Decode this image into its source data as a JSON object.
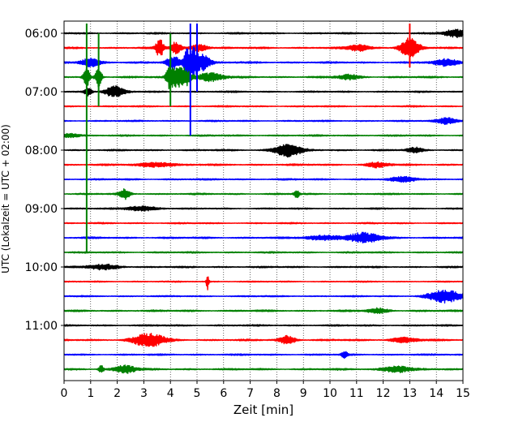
{
  "chart_data": {
    "type": "line",
    "title": "",
    "xlabel": "Zeit  [min]",
    "ylabel": "UTC (Lokalzeit = UTC + 02:00)",
    "xlim": [
      0,
      15
    ],
    "x_ticks": [
      "0",
      "1",
      "2",
      "3",
      "4",
      "5",
      "6",
      "7",
      "8",
      "9",
      "10",
      "11",
      "12",
      "13",
      "14",
      "15"
    ],
    "y_tick_labels": [
      "06:00",
      "07:00",
      "08:00",
      "09:00",
      "10:00",
      "11:00"
    ],
    "trace_interval_min": 15,
    "trace_colors": [
      "#000000",
      "#ff0000",
      "#0000ff",
      "#008000"
    ],
    "grid": {
      "x": "dotted",
      "y": false
    },
    "traces": [
      {
        "start": "06:00",
        "color": "#000000",
        "base_amp": 0.9,
        "events": [
          {
            "t": 14.7,
            "amp": 5,
            "w": 0.4
          }
        ]
      },
      {
        "start": "06:15",
        "color": "#ff0000",
        "base_amp": 1.0,
        "events": [
          {
            "t": 3.6,
            "amp": 11,
            "w": 0.15
          },
          {
            "t": 4.2,
            "amp": 7,
            "w": 0.2
          },
          {
            "t": 5.1,
            "amp": 5,
            "w": 0.3
          },
          {
            "t": 11.1,
            "amp": 4,
            "w": 0.4
          },
          {
            "t": 13.0,
            "amp": 12,
            "w": 0.35
          }
        ]
      },
      {
        "start": "06:30",
        "color": "#0000ff",
        "base_amp": 1.0,
        "events": [
          {
            "t": 1.0,
            "amp": 5,
            "w": 0.4
          },
          {
            "t": 4.1,
            "amp": 8,
            "w": 0.25
          },
          {
            "t": 4.6,
            "amp": 22,
            "w": 0.1
          },
          {
            "t": 4.85,
            "amp": 18,
            "w": 0.15
          },
          {
            "t": 5.2,
            "amp": 10,
            "w": 0.3
          },
          {
            "t": 14.4,
            "amp": 4,
            "w": 0.5
          }
        ]
      },
      {
        "start": "06:45",
        "color": "#008000",
        "base_amp": 1.0,
        "events": [
          {
            "t": 0.85,
            "amp": 13,
            "w": 0.12
          },
          {
            "t": 1.3,
            "amp": 12,
            "w": 0.12
          },
          {
            "t": 4.0,
            "amp": 15,
            "w": 0.15
          },
          {
            "t": 4.3,
            "amp": 12,
            "w": 0.2
          },
          {
            "t": 4.6,
            "amp": 10,
            "w": 0.2
          },
          {
            "t": 5.5,
            "amp": 5,
            "w": 0.5
          },
          {
            "t": 10.7,
            "amp": 3,
            "w": 0.4
          }
        ]
      },
      {
        "start": "07:00",
        "color": "#000000",
        "base_amp": 0.9,
        "events": [
          {
            "t": 1.9,
            "amp": 7,
            "w": 0.35
          },
          {
            "t": 0.9,
            "amp": 5,
            "w": 0.15
          }
        ]
      },
      {
        "start": "07:15",
        "color": "#ff0000",
        "base_amp": 0.8,
        "events": []
      },
      {
        "start": "07:30",
        "color": "#0000ff",
        "base_amp": 0.8,
        "events": [
          {
            "t": 14.4,
            "amp": 4,
            "w": 0.4
          }
        ]
      },
      {
        "start": "07:45",
        "color": "#008000",
        "base_amp": 0.9,
        "events": [
          {
            "t": 0.2,
            "amp": 2.5,
            "w": 0.4
          }
        ]
      },
      {
        "start": "08:00",
        "color": "#000000",
        "base_amp": 0.9,
        "events": [
          {
            "t": 8.4,
            "amp": 8,
            "w": 0.5
          },
          {
            "t": 13.2,
            "amp": 3,
            "w": 0.3
          }
        ]
      },
      {
        "start": "08:15",
        "color": "#ff0000",
        "base_amp": 1.0,
        "events": [
          {
            "t": 3.5,
            "amp": 3,
            "w": 0.6
          },
          {
            "t": 11.8,
            "amp": 3,
            "w": 0.4
          }
        ]
      },
      {
        "start": "08:30",
        "color": "#0000ff",
        "base_amp": 0.9,
        "events": [
          {
            "t": 12.8,
            "amp": 3,
            "w": 0.5
          }
        ]
      },
      {
        "start": "08:45",
        "color": "#008000",
        "base_amp": 0.9,
        "events": [
          {
            "t": 2.3,
            "amp": 6,
            "w": 0.2
          },
          {
            "t": 8.75,
            "amp": 5,
            "w": 0.1
          }
        ]
      },
      {
        "start": "09:00",
        "color": "#000000",
        "base_amp": 0.8,
        "events": [
          {
            "t": 2.9,
            "amp": 3,
            "w": 0.6
          }
        ]
      },
      {
        "start": "09:15",
        "color": "#ff0000",
        "base_amp": 0.8,
        "events": []
      },
      {
        "start": "09:30",
        "color": "#0000ff",
        "base_amp": 1.0,
        "events": [
          {
            "t": 11.3,
            "amp": 6,
            "w": 0.6
          },
          {
            "t": 9.8,
            "amp": 3,
            "w": 0.7
          }
        ]
      },
      {
        "start": "09:45",
        "color": "#008000",
        "base_amp": 0.9,
        "events": []
      },
      {
        "start": "10:00",
        "color": "#000000",
        "base_amp": 0.9,
        "events": [
          {
            "t": 1.5,
            "amp": 3,
            "w": 0.6
          }
        ]
      },
      {
        "start": "10:15",
        "color": "#ff0000",
        "base_amp": 0.7,
        "events": [
          {
            "t": 5.4,
            "amp": 10,
            "w": 0.05
          }
        ]
      },
      {
        "start": "10:30",
        "color": "#0000ff",
        "base_amp": 0.8,
        "events": [
          {
            "t": 14.3,
            "amp": 8,
            "w": 0.6
          }
        ]
      },
      {
        "start": "10:45",
        "color": "#008000",
        "base_amp": 1.0,
        "events": [
          {
            "t": 11.8,
            "amp": 3,
            "w": 0.4
          }
        ]
      },
      {
        "start": "11:00",
        "color": "#000000",
        "base_amp": 0.9,
        "events": []
      },
      {
        "start": "11:15",
        "color": "#ff0000",
        "base_amp": 1.0,
        "events": [
          {
            "t": 3.2,
            "amp": 8,
            "w": 0.6
          },
          {
            "t": 8.4,
            "amp": 5,
            "w": 0.3
          },
          {
            "t": 12.8,
            "amp": 3,
            "w": 0.5
          }
        ]
      },
      {
        "start": "11:30",
        "color": "#0000ff",
        "base_amp": 0.9,
        "events": [
          {
            "t": 10.55,
            "amp": 5,
            "w": 0.1
          }
        ]
      },
      {
        "start": "11:45",
        "color": "#008000",
        "base_amp": 1.0,
        "events": [
          {
            "t": 2.3,
            "amp": 5,
            "w": 0.4
          },
          {
            "t": 12.5,
            "amp": 4,
            "w": 0.5
          },
          {
            "t": 1.4,
            "amp": 5,
            "w": 0.1
          }
        ]
      }
    ],
    "spikes": [
      {
        "trace_start": "06:45",
        "t": 0.85,
        "color": "#008000",
        "from": "05:50",
        "to": "09:45"
      },
      {
        "trace_start": "06:45",
        "t": 1.3,
        "color": "#008000",
        "from": "06:00",
        "to": "07:15"
      },
      {
        "trace_start": "06:45",
        "t": 4.0,
        "color": "#008000",
        "from": "06:00",
        "to": "07:15"
      },
      {
        "trace_start": "06:30",
        "t": 4.75,
        "color": "#0000ff",
        "from": "05:50",
        "to": "07:45"
      },
      {
        "trace_start": "06:30",
        "t": 5.0,
        "color": "#0000ff",
        "from": "05:50",
        "to": "07:00"
      },
      {
        "trace_start": "06:15",
        "t": 13.0,
        "color": "#ff0000",
        "from": "05:50",
        "to": "06:35"
      }
    ]
  }
}
